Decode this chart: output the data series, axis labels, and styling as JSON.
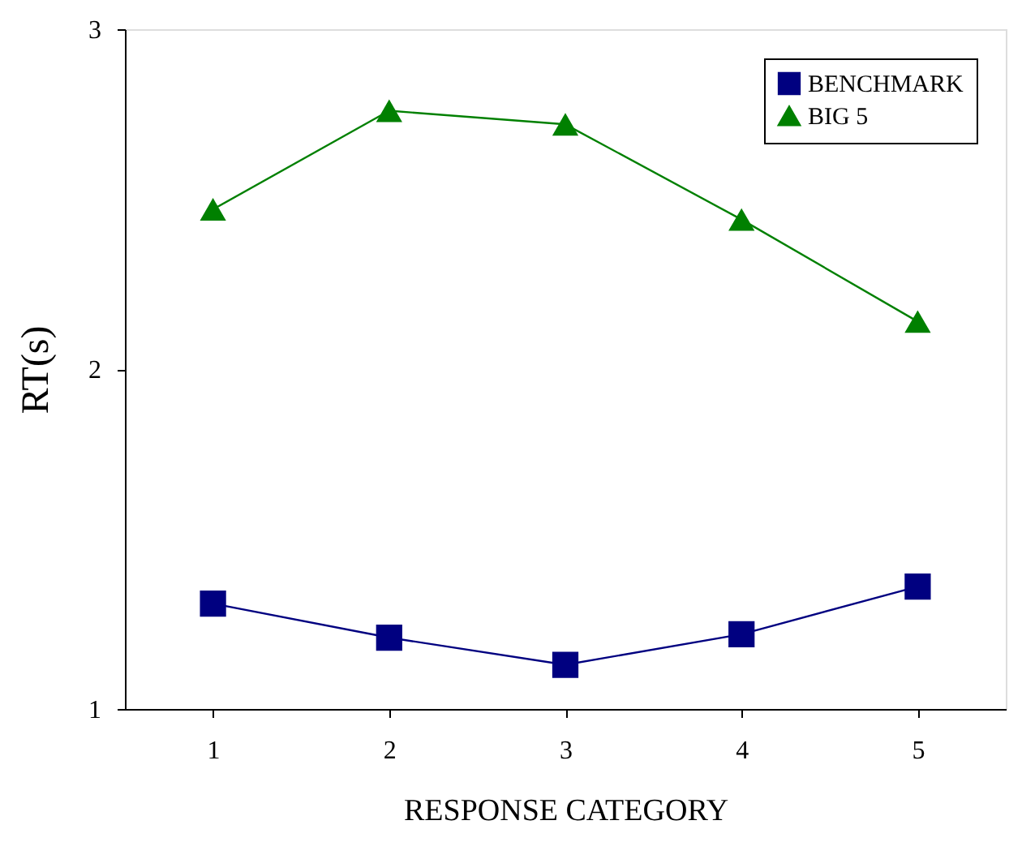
{
  "chart_data": {
    "type": "line",
    "xlabel": "RESPONSE CATEGORY",
    "ylabel": "RT(s)",
    "categories": [
      "1",
      "2",
      "3",
      "4",
      "5"
    ],
    "series": [
      {
        "name": "BENCHMARK",
        "color": "#000080",
        "marker": "square",
        "values": [
          1.31,
          1.21,
          1.13,
          1.22,
          1.36
        ]
      },
      {
        "name": "BIG 5",
        "color": "#008000",
        "marker": "triangle",
        "values": [
          2.47,
          2.76,
          2.72,
          2.44,
          2.14
        ]
      }
    ],
    "ylim": [
      1,
      3
    ],
    "yticks": [
      1,
      2,
      3
    ],
    "grid": false,
    "legend": "top right",
    "line_style": "solid"
  }
}
